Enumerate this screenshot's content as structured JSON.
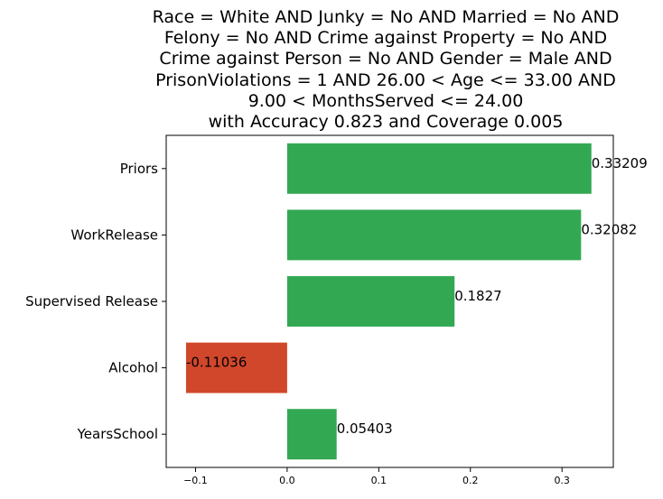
{
  "chart_data": {
    "type": "bar",
    "orientation": "horizontal",
    "title_lines": [
      "Race = White AND Junky = No AND Married = No AND",
      "Felony = No AND Crime against Property = No AND",
      "Crime against Person = No AND Gender = Male AND",
      "PrisonViolations = 1 AND 26.00 < Age <= 33.00 AND",
      "9.00 < MonthsServed <= 24.00",
      "with Accuracy 0.823 and Coverage 0.005"
    ],
    "categories": [
      "Priors",
      "WorkRelease",
      "Supervised Release",
      "Alcohol",
      "YearsSchool"
    ],
    "values": [
      0.33209,
      0.32082,
      0.1827,
      -0.11036,
      0.05403
    ],
    "value_labels": [
      "0.33209",
      "0.32082",
      "0.1827",
      "-0.11036",
      "0.05403"
    ],
    "xlim": [
      -0.132,
      0.356
    ],
    "xticks": [
      -0.1,
      0.0,
      0.1,
      0.2,
      0.3
    ],
    "xtick_labels": [
      "−0.1",
      "0.0",
      "0.1",
      "0.2",
      "0.3"
    ],
    "xlabel": "",
    "ylabel": "",
    "grid": false,
    "colors": {
      "positive": "#33a853",
      "negative": "#d1472b"
    }
  }
}
